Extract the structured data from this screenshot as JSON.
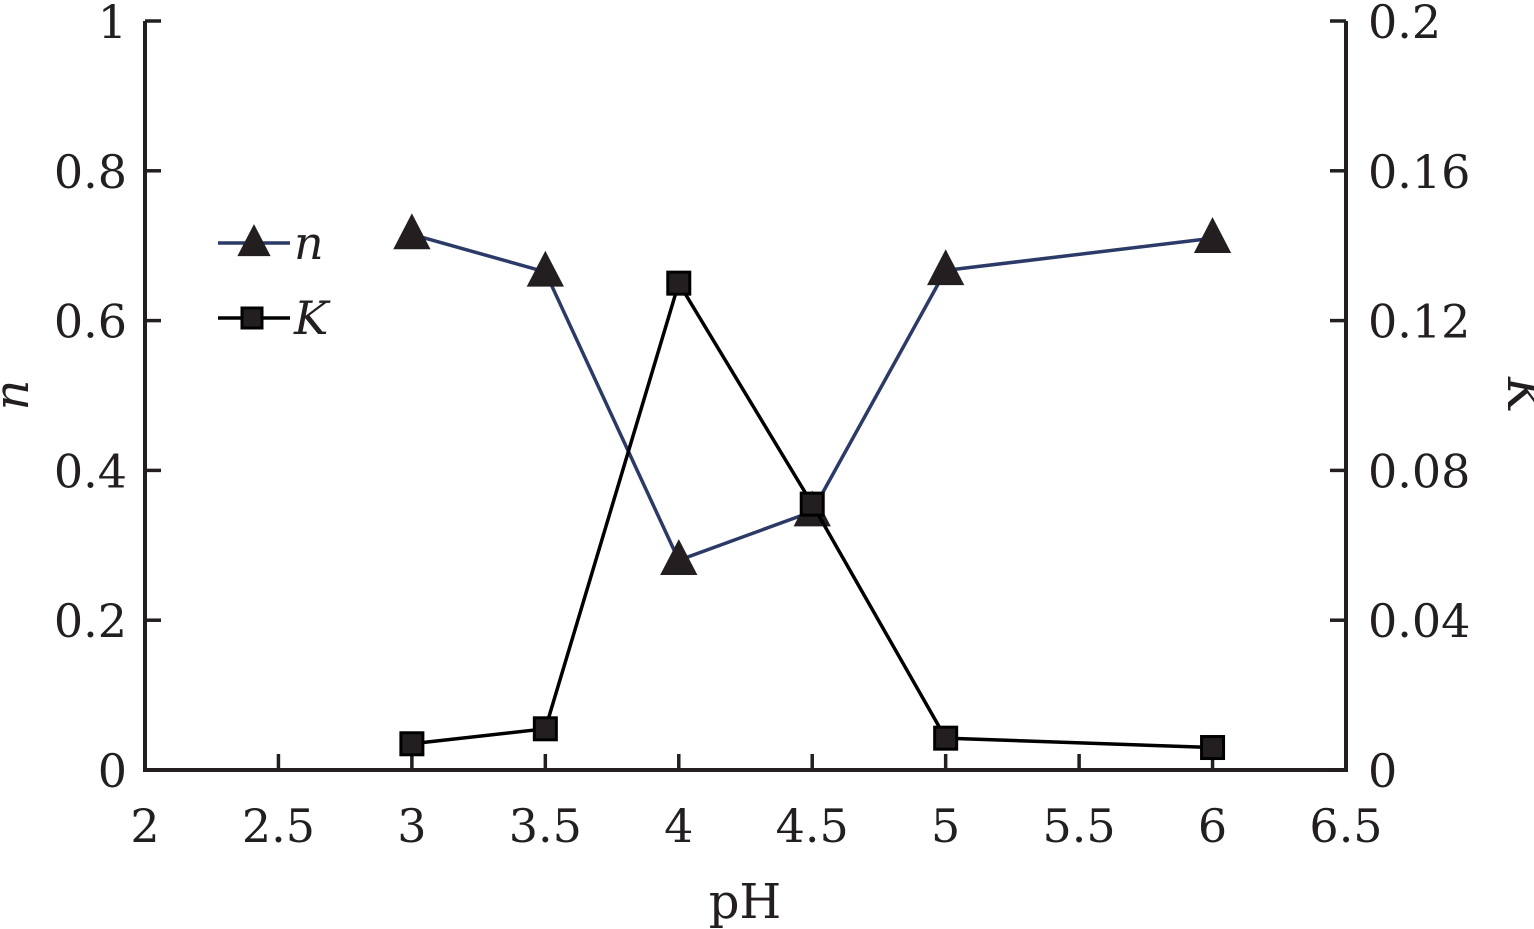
{
  "chart_data": {
    "type": "line",
    "x": [
      3,
      3.5,
      4,
      4.5,
      5,
      6
    ],
    "xlabel": "pH",
    "xlim": [
      2,
      6.5
    ],
    "xticks": [
      "2",
      "2.5",
      "3",
      "3.5",
      "4",
      "4.5",
      "5",
      "5.5",
      "6",
      "6.5"
    ],
    "ylabel_left": "n",
    "ylim_left": [
      0,
      1
    ],
    "yticks_left": [
      "0",
      "0.2",
      "0.4",
      "0.6",
      "0.8",
      "1"
    ],
    "ylabel_right": "K",
    "ylim_right": [
      0,
      0.2
    ],
    "yticks_right": [
      "0",
      "0.04",
      "0.08",
      "0.12",
      "0.16",
      "0.2"
    ],
    "grid": false,
    "legend_position": "top-left",
    "series": [
      {
        "name": "n",
        "axis": "left",
        "marker": "triangle",
        "color": "#2b3a66",
        "values": [
          0.715,
          0.665,
          0.28,
          0.345,
          0.667,
          0.71
        ]
      },
      {
        "name": "K",
        "axis": "right",
        "marker": "square",
        "color": "#000000",
        "values": [
          0.007,
          0.011,
          0.13,
          0.071,
          0.0085,
          0.006
        ]
      }
    ]
  }
}
